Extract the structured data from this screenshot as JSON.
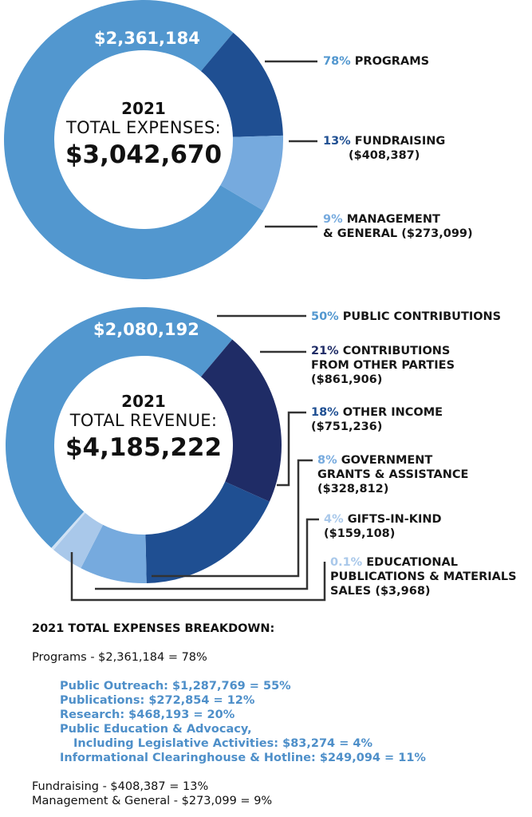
{
  "colors": {
    "light_blue": "#5297cf",
    "mid_blue": "#1f4f92",
    "pale_blue": "#76aade",
    "navy": "#1f2c66",
    "very_pale": "#a9c8ea",
    "connector": "#333333",
    "sub_text": "#4e8fc9"
  },
  "chart_data": [
    {
      "type": "pie",
      "variant": "donut",
      "center_year": "2021",
      "center_label": "TOTAL EXPENSES:",
      "center_value": "$3,042,670",
      "total": 3042670,
      "ring_label": "$2,361,184",
      "slices": [
        {
          "label": "PROGRAMS",
          "pct_text": "78%",
          "percent": 78,
          "amount": 2361184,
          "amount_text": "",
          "color": "#5297cf"
        },
        {
          "label": "FUNDRAISING",
          "pct_text": "13%",
          "percent": 13,
          "amount": 408387,
          "amount_text": "($408,387)",
          "color": "#1f4f92"
        },
        {
          "label": "MANAGEMENT",
          "label2": "& GENERAL",
          "pct_text": "9%",
          "percent": 9,
          "amount": 273099,
          "amount_text": "($273,099)",
          "color": "#76aade"
        }
      ]
    },
    {
      "type": "pie",
      "variant": "donut",
      "center_year": "2021",
      "center_label": "TOTAL REVENUE:",
      "center_value": "$4,185,222",
      "total": 4185222,
      "ring_label": "$2,080,192",
      "slices": [
        {
          "label": "PUBLIC CONTRIBUTIONS",
          "pct_text": "50%",
          "percent": 50,
          "amount": 2080192,
          "amount_text": "",
          "color": "#5297cf"
        },
        {
          "label": "CONTRIBUTIONS",
          "label2": "FROM OTHER PARTIES",
          "pct_text": "21%",
          "percent": 21,
          "amount": 861906,
          "amount_text": "($861,906)",
          "color": "#1f2c66"
        },
        {
          "label": "OTHER INCOME",
          "pct_text": "18%",
          "percent": 18,
          "amount": 751236,
          "amount_text": "($751,236)",
          "color": "#1f4f92"
        },
        {
          "label": "GOVERNMENT",
          "label2": "GRANTS & ASSISTANCE",
          "pct_text": "8%",
          "percent": 8,
          "amount": 328812,
          "amount_text": "($328,812)",
          "color": "#76aade"
        },
        {
          "label": "GIFTS-IN-KIND",
          "pct_text": "4%",
          "percent": 4,
          "amount": 159108,
          "amount_text": "($159,108)",
          "color": "#a9c8ea"
        },
        {
          "label": "EDUCATIONAL",
          "label2": "PUBLICATIONS & MATERIALS",
          "label3": "SALES",
          "pct_text": "0.1%",
          "percent": 0.1,
          "amount": 3968,
          "amount_text": "($3,968)",
          "color": "#cfe1f4"
        }
      ]
    }
  ],
  "breakdown": {
    "title": "2021 TOTAL EXPENSES BREAKDOWN:",
    "programs": "Programs - $2,361,184 = 78%",
    "sub_items": [
      "Public Outreach: $1,287,769 = 55%",
      "Publications: $272,854 = 12%",
      "Research: $468,193 = 20%",
      "Public Education & Advocacy,",
      "Including Legislative Activities: $83,274 = 4%",
      "Informational Clearinghouse & Hotline: $249,094 = 11%"
    ],
    "fundraising": "Fundraising - $408,387 = 13%",
    "management": "Management & General - $273,099 = 9%"
  }
}
